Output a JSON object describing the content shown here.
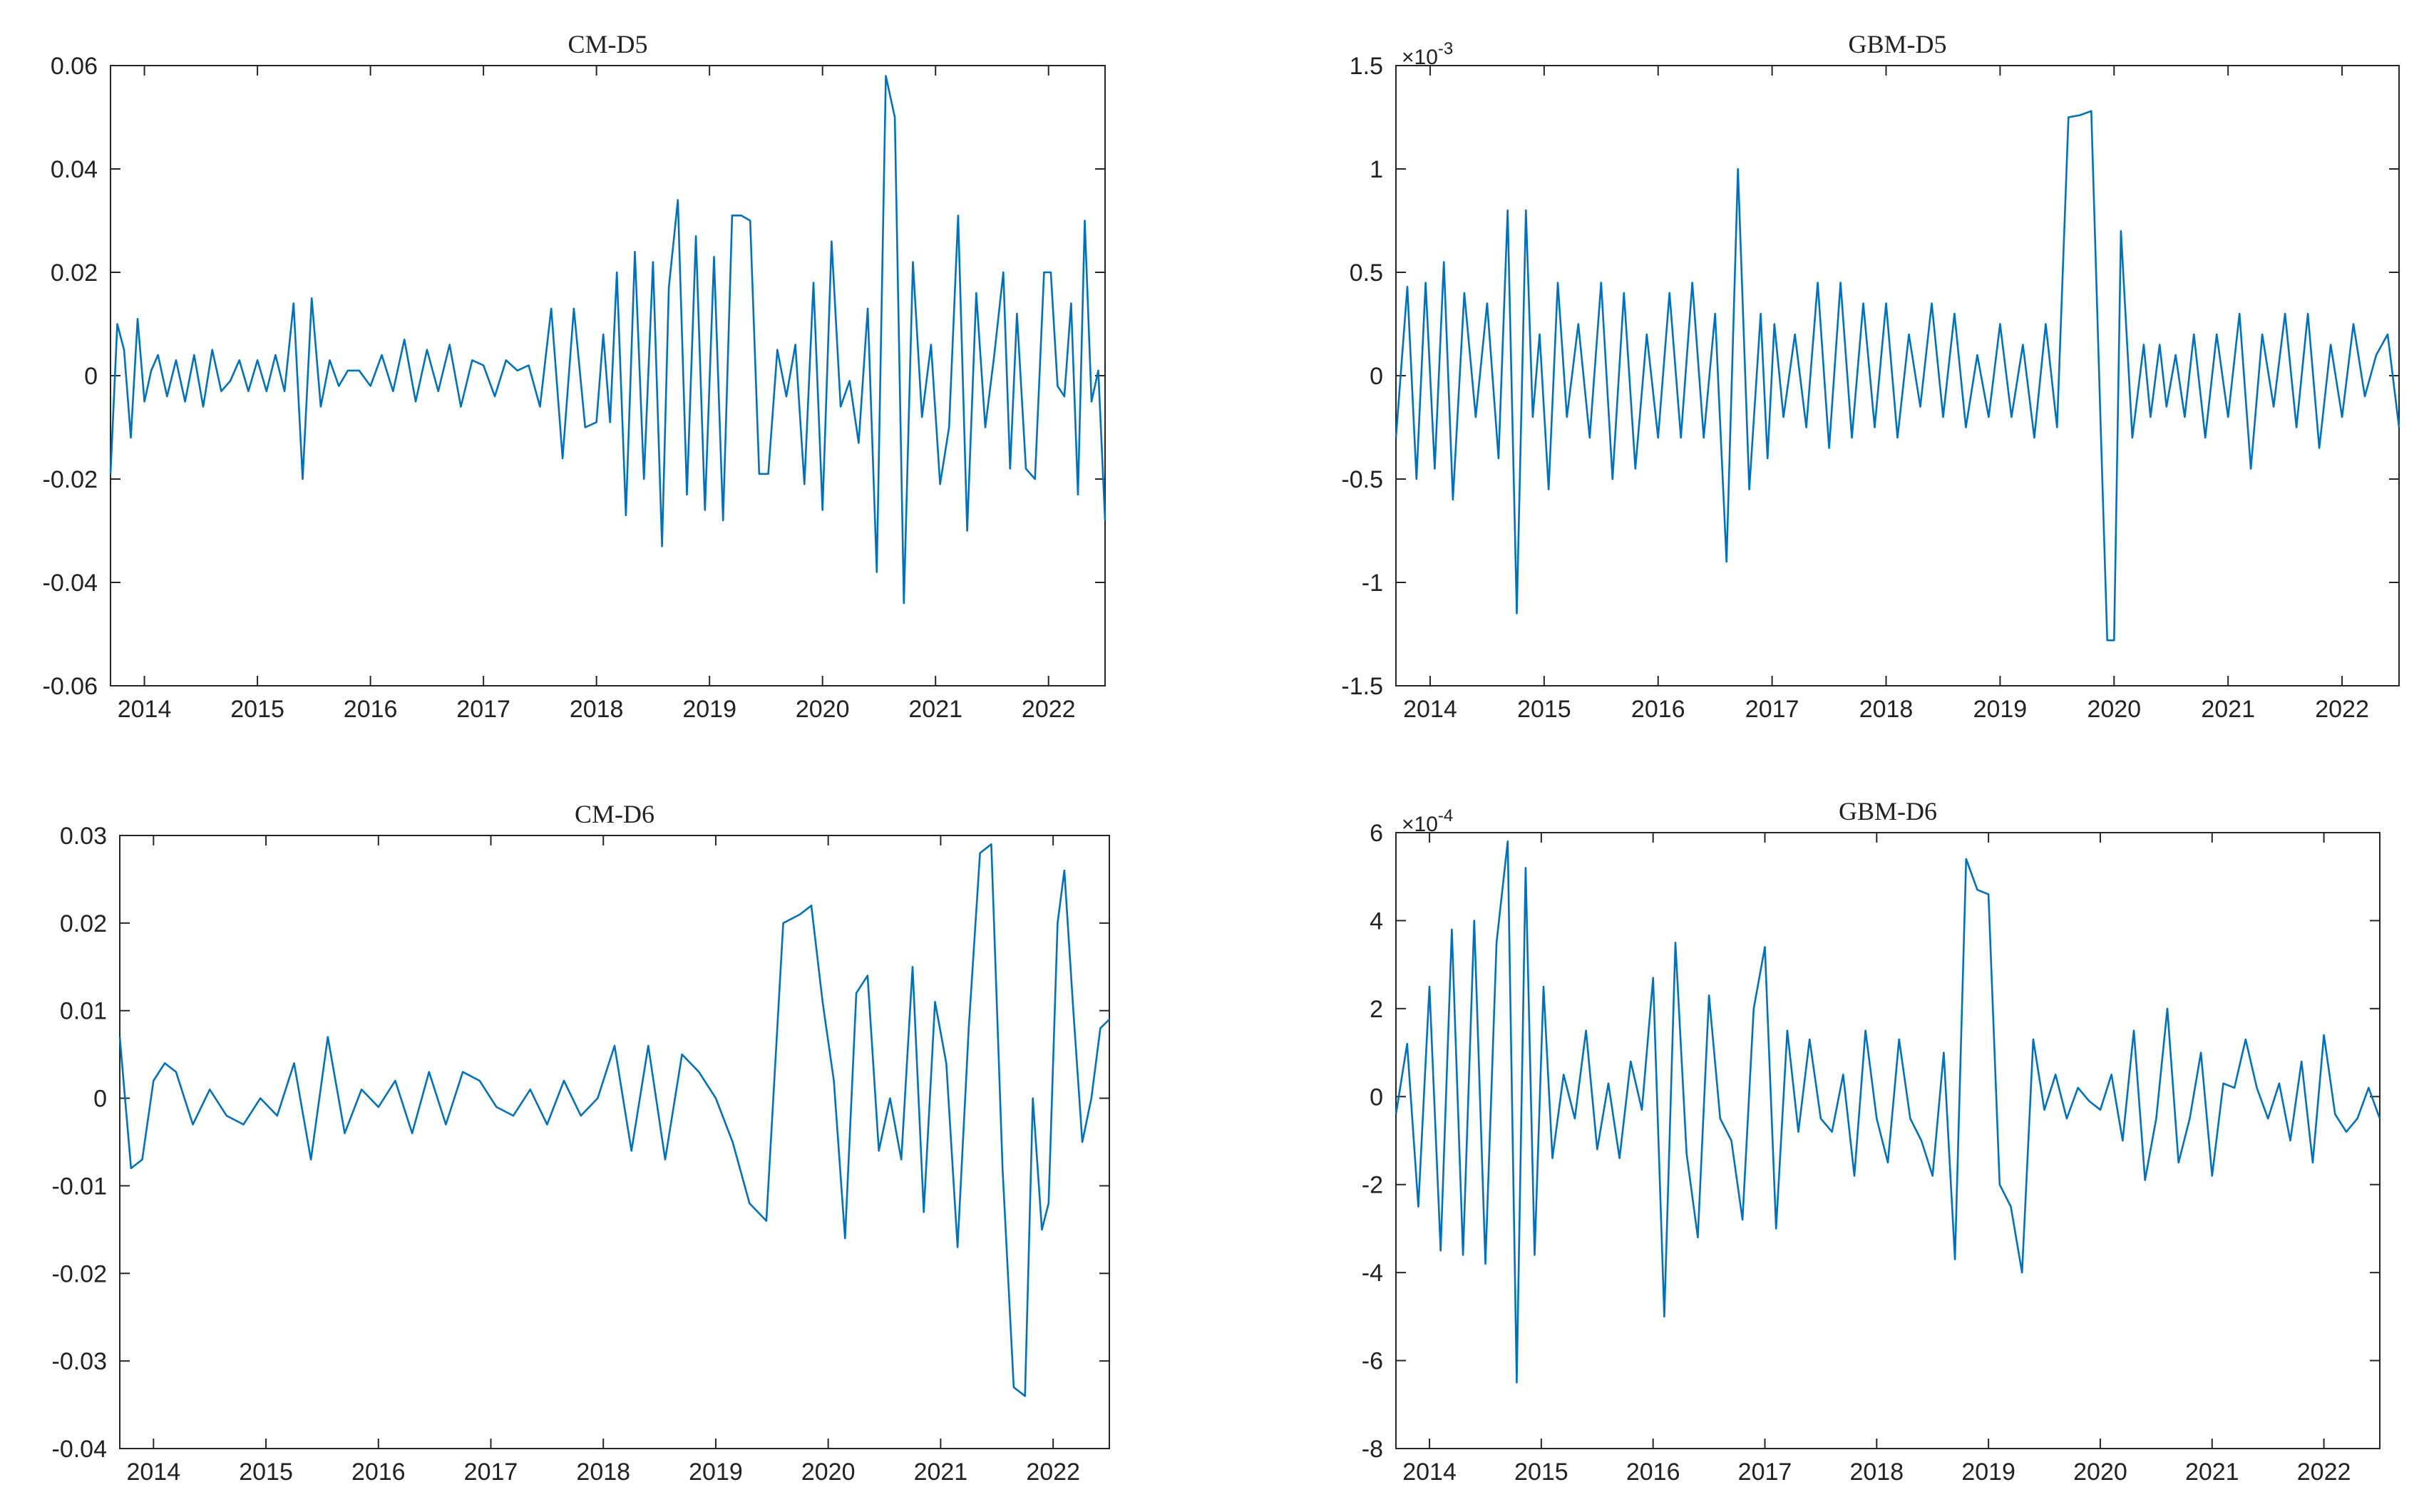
{
  "chart_data": [
    {
      "id": "cm-d5",
      "type": "line",
      "title": "CM-D5",
      "xlabel": "",
      "ylabel": "",
      "x_ticks": [
        "2014",
        "2015",
        "2016",
        "2017",
        "2018",
        "2019",
        "2020",
        "2021",
        "2022"
      ],
      "xlim": [
        2013.7,
        2022.5
      ],
      "ylim": [
        -0.06,
        0.06
      ],
      "y_ticks": [
        -0.06,
        -0.04,
        -0.02,
        0,
        0.02,
        0.04,
        0.06
      ],
      "y_tick_labels": [
        "-0.06",
        "-0.04",
        "-0.02",
        "0",
        "0.02",
        "0.04",
        "0.06"
      ],
      "exponent_label": "",
      "grid": false,
      "color": "#0072BD",
      "series": [
        {
          "x": [
            2013.7,
            2013.76,
            2013.82,
            2013.88,
            2013.94,
            2014.0,
            2014.06,
            2014.12,
            2014.2,
            2014.28,
            2014.36,
            2014.44,
            2014.52,
            2014.6,
            2014.68,
            2014.76,
            2014.84,
            2014.92,
            2015.0,
            2015.08,
            2015.16,
            2015.24,
            2015.32,
            2015.4,
            2015.48,
            2015.56,
            2015.64,
            2015.72,
            2015.8,
            2015.9,
            2016.0,
            2016.1,
            2016.2,
            2016.3,
            2016.4,
            2016.5,
            2016.6,
            2016.7,
            2016.8,
            2016.9,
            2017.0,
            2017.1,
            2017.2,
            2017.3,
            2017.4,
            2017.5,
            2017.6,
            2017.7,
            2017.8,
            2017.9,
            2018.0,
            2018.06,
            2018.12,
            2018.18,
            2018.26,
            2018.34,
            2018.42,
            2018.5,
            2018.58,
            2018.64,
            2018.72,
            2018.8,
            2018.88,
            2018.96,
            2019.04,
            2019.12,
            2019.2,
            2019.28,
            2019.36,
            2019.44,
            2019.52,
            2019.6,
            2019.68,
            2019.76,
            2019.84,
            2019.92,
            2020.0,
            2020.08,
            2020.16,
            2020.24,
            2020.32,
            2020.4,
            2020.48,
            2020.56,
            2020.64,
            2020.72,
            2020.8,
            2020.88,
            2020.96,
            2021.04,
            2021.12,
            2021.2,
            2021.28,
            2021.36,
            2021.44,
            2021.52,
            2021.6,
            2021.66,
            2021.72,
            2021.8,
            2021.88,
            2021.96,
            2022.02,
            2022.08,
            2022.14,
            2022.2,
            2022.26,
            2022.32,
            2022.38,
            2022.44,
            2022.5
          ],
          "y": [
            -0.019,
            0.01,
            0.005,
            -0.012,
            0.011,
            -0.005,
            0.001,
            0.004,
            -0.004,
            0.003,
            -0.005,
            0.004,
            -0.006,
            0.005,
            -0.003,
            -0.001,
            0.003,
            -0.003,
            0.003,
            -0.003,
            0.004,
            -0.003,
            0.014,
            -0.02,
            0.015,
            -0.006,
            0.003,
            -0.002,
            0.001,
            0.001,
            -0.002,
            0.004,
            -0.003,
            0.007,
            -0.005,
            0.005,
            -0.003,
            0.006,
            -0.006,
            0.003,
            0.002,
            -0.004,
            0.003,
            0.001,
            0.002,
            -0.006,
            0.013,
            -0.016,
            0.013,
            -0.01,
            -0.009,
            0.008,
            -0.009,
            0.02,
            -0.027,
            0.024,
            -0.02,
            0.022,
            -0.033,
            0.017,
            0.034,
            -0.023,
            0.027,
            -0.026,
            0.023,
            -0.028,
            0.031,
            0.031,
            0.03,
            -0.019,
            -0.019,
            0.005,
            -0.004,
            0.006,
            -0.021,
            0.018,
            -0.026,
            0.026,
            -0.006,
            -0.001,
            -0.013,
            0.013,
            -0.038,
            0.058,
            0.05,
            -0.044,
            0.022,
            -0.008,
            0.006,
            -0.021,
            -0.01,
            0.031,
            -0.03,
            0.016,
            -0.01,
            0.004,
            0.02,
            -0.018,
            0.012,
            -0.018,
            -0.02,
            0.02,
            0.02,
            -0.002,
            -0.004,
            0.014,
            -0.023,
            0.03,
            -0.005,
            0.001,
            -0.028
          ]
        }
      ]
    },
    {
      "id": "gbm-d5",
      "type": "line",
      "title": "GBM-D5",
      "xlabel": "",
      "ylabel": "",
      "x_ticks": [
        "2014",
        "2015",
        "2016",
        "2017",
        "2018",
        "2019",
        "2020",
        "2021",
        "2022"
      ],
      "xlim": [
        2013.7,
        2022.5
      ],
      "ylim": [
        -1.5,
        1.5
      ],
      "y_ticks": [
        -1.5,
        -1,
        -0.5,
        0,
        0.5,
        1,
        1.5
      ],
      "y_tick_labels": [
        "-1.5",
        "-1",
        "-0.5",
        "0",
        "0.5",
        "1",
        "1.5"
      ],
      "exponent_label": "×10",
      "exponent_power": "-3",
      "grid": false,
      "color": "#0072BD",
      "series": [
        {
          "x": [
            2013.7,
            2013.8,
            2013.88,
            2013.96,
            2014.04,
            2014.12,
            2014.2,
            2014.3,
            2014.4,
            2014.5,
            2014.6,
            2014.68,
            2014.76,
            2014.84,
            2014.9,
            2014.96,
            2015.04,
            2015.12,
            2015.2,
            2015.3,
            2015.4,
            2015.5,
            2015.6,
            2015.7,
            2015.8,
            2015.9,
            2016.0,
            2016.1,
            2016.2,
            2016.3,
            2016.4,
            2016.5,
            2016.6,
            2016.7,
            2016.8,
            2016.9,
            2016.96,
            2017.02,
            2017.1,
            2017.2,
            2017.3,
            2017.4,
            2017.5,
            2017.6,
            2017.7,
            2017.8,
            2017.9,
            2018.0,
            2018.1,
            2018.2,
            2018.3,
            2018.4,
            2018.5,
            2018.6,
            2018.7,
            2018.8,
            2018.9,
            2019.0,
            2019.1,
            2019.2,
            2019.3,
            2019.4,
            2019.5,
            2019.6,
            2019.7,
            2019.8,
            2019.88,
            2019.94,
            2020.0,
            2020.06,
            2020.16,
            2020.26,
            2020.32,
            2020.4,
            2020.46,
            2020.54,
            2020.62,
            2020.7,
            2020.8,
            2020.9,
            2021.0,
            2021.1,
            2021.2,
            2021.3,
            2021.4,
            2021.5,
            2021.6,
            2021.7,
            2021.8,
            2021.9,
            2022.0,
            2022.1,
            2022.2,
            2022.3,
            2022.4,
            2022.5
          ],
          "y": [
            -0.3,
            0.43,
            -0.5,
            0.45,
            -0.45,
            0.55,
            -0.6,
            0.4,
            -0.2,
            0.35,
            -0.4,
            0.8,
            -1.15,
            0.8,
            -0.2,
            0.2,
            -0.55,
            0.45,
            -0.2,
            0.25,
            -0.3,
            0.45,
            -0.5,
            0.4,
            -0.45,
            0.2,
            -0.3,
            0.4,
            -0.3,
            0.45,
            -0.3,
            0.3,
            -0.9,
            1.0,
            -0.55,
            0.3,
            -0.4,
            0.25,
            -0.2,
            0.2,
            -0.25,
            0.45,
            -0.35,
            0.45,
            -0.3,
            0.35,
            -0.25,
            0.35,
            -0.3,
            0.2,
            -0.15,
            0.35,
            -0.2,
            0.3,
            -0.25,
            0.1,
            -0.2,
            0.25,
            -0.2,
            0.15,
            -0.3,
            0.25,
            -0.25,
            1.25,
            1.26,
            1.28,
            -0.2,
            -1.28,
            -1.28,
            0.7,
            -0.3,
            0.15,
            -0.2,
            0.15,
            -0.15,
            0.1,
            -0.2,
            0.2,
            -0.3,
            0.2,
            -0.2,
            0.3,
            -0.45,
            0.2,
            -0.15,
            0.3,
            -0.25,
            0.3,
            -0.35,
            0.15,
            -0.2,
            0.25,
            -0.1,
            0.1,
            0.2,
            -0.25
          ],
          "x_scale_note": ""
        }
      ]
    },
    {
      "id": "cm-d6",
      "type": "line",
      "title": "CM-D6",
      "xlabel": "",
      "ylabel": "",
      "x_ticks": [
        "2014",
        "2015",
        "2016",
        "2017",
        "2018",
        "2019",
        "2020",
        "2021",
        "2022"
      ],
      "xlim": [
        2013.7,
        2022.5
      ],
      "ylim": [
        -0.04,
        0.03
      ],
      "y_ticks": [
        -0.04,
        -0.03,
        -0.02,
        -0.01,
        0,
        0.01,
        0.02,
        0.03
      ],
      "y_tick_labels": [
        "-0.04",
        "-0.03",
        "-0.02",
        "-0.01",
        "0",
        "0.01",
        "0.02",
        "0.03"
      ],
      "exponent_label": "",
      "grid": false,
      "color": "#0072BD",
      "series": [
        {
          "x": [
            2013.7,
            2013.8,
            2013.9,
            2014.0,
            2014.1,
            2014.2,
            2014.35,
            2014.5,
            2014.65,
            2014.8,
            2014.95,
            2015.1,
            2015.25,
            2015.4,
            2015.55,
            2015.7,
            2015.85,
            2016.0,
            2016.15,
            2016.3,
            2016.45,
            2016.6,
            2016.75,
            2016.9,
            2017.05,
            2017.2,
            2017.35,
            2017.5,
            2017.65,
            2017.8,
            2017.95,
            2018.1,
            2018.25,
            2018.4,
            2018.55,
            2018.7,
            2018.85,
            2019.0,
            2019.15,
            2019.3,
            2019.45,
            2019.6,
            2019.75,
            2019.85,
            2019.95,
            2020.05,
            2020.15,
            2020.25,
            2020.35,
            2020.45,
            2020.55,
            2020.65,
            2020.75,
            2020.85,
            2020.95,
            2021.05,
            2021.15,
            2021.25,
            2021.35,
            2021.45,
            2021.55,
            2021.65,
            2021.75,
            2021.82,
            2021.9,
            2021.96,
            2022.04,
            2022.1,
            2022.18,
            2022.26,
            2022.34,
            2022.42,
            2022.5
          ],
          "y": [
            0.007,
            -0.008,
            -0.007,
            0.002,
            0.004,
            0.003,
            -0.003,
            0.001,
            -0.002,
            -0.003,
            0.0,
            -0.002,
            0.004,
            -0.007,
            0.007,
            -0.004,
            0.001,
            -0.001,
            0.002,
            -0.004,
            0.003,
            -0.003,
            0.003,
            0.002,
            -0.001,
            -0.002,
            0.001,
            -0.003,
            0.002,
            -0.002,
            0.0,
            0.006,
            -0.006,
            0.006,
            -0.007,
            0.005,
            0.003,
            0.0,
            -0.005,
            -0.012,
            -0.014,
            0.02,
            0.021,
            0.022,
            0.011,
            0.002,
            -0.016,
            0.012,
            0.014,
            -0.006,
            0.0,
            -0.007,
            0.015,
            -0.013,
            0.011,
            0.004,
            -0.017,
            0.008,
            0.028,
            0.029,
            -0.008,
            -0.033,
            -0.034,
            0.0,
            -0.015,
            -0.012,
            0.02,
            0.026,
            0.01,
            -0.005,
            0.0,
            0.008,
            0.009
          ]
        }
      ]
    },
    {
      "id": "gbm-d6",
      "type": "line",
      "title": "GBM-D6",
      "xlabel": "",
      "ylabel": "",
      "x_ticks": [
        "2014",
        "2015",
        "2016",
        "2017",
        "2018",
        "2019",
        "2020",
        "2021",
        "2022"
      ],
      "xlim": [
        2013.7,
        2022.5
      ],
      "ylim": [
        -8,
        6
      ],
      "y_ticks": [
        -8,
        -6,
        -4,
        -2,
        0,
        2,
        4,
        6
      ],
      "y_tick_labels": [
        "-8",
        "-6",
        "-4",
        "-2",
        "0",
        "2",
        "4",
        "6"
      ],
      "exponent_label": "×10",
      "exponent_power": "-4",
      "grid": false,
      "color": "#0072BD",
      "series": [
        {
          "x": [
            2013.7,
            2013.8,
            2013.9,
            2014.0,
            2014.1,
            2014.2,
            2014.3,
            2014.4,
            2014.5,
            2014.6,
            2014.7,
            2014.78,
            2014.86,
            2014.94,
            2015.02,
            2015.1,
            2015.2,
            2015.3,
            2015.4,
            2015.5,
            2015.6,
            2015.7,
            2015.8,
            2015.9,
            2016.0,
            2016.1,
            2016.2,
            2016.3,
            2016.4,
            2016.5,
            2016.6,
            2016.7,
            2016.8,
            2016.9,
            2017.0,
            2017.1,
            2017.2,
            2017.3,
            2017.4,
            2017.5,
            2017.6,
            2017.7,
            2017.8,
            2017.9,
            2018.0,
            2018.1,
            2018.2,
            2018.3,
            2018.4,
            2018.5,
            2018.6,
            2018.7,
            2018.8,
            2018.9,
            2019.0,
            2019.1,
            2019.2,
            2019.3,
            2019.4,
            2019.5,
            2019.6,
            2019.7,
            2019.8,
            2019.9,
            2020.0,
            2020.1,
            2020.2,
            2020.3,
            2020.4,
            2020.5,
            2020.6,
            2020.7,
            2020.8,
            2020.9,
            2021.0,
            2021.1,
            2021.2,
            2021.3,
            2021.4,
            2021.5,
            2021.6,
            2021.7,
            2021.8,
            2021.9,
            2022.0,
            2022.1,
            2022.2,
            2022.3,
            2022.4,
            2022.5
          ],
          "y": [
            -0.4,
            1.2,
            -2.5,
            2.5,
            -3.5,
            3.8,
            -3.6,
            4.0,
            -3.8,
            3.5,
            5.8,
            -6.5,
            5.2,
            -3.6,
            2.5,
            -1.4,
            0.5,
            -0.5,
            1.5,
            -1.2,
            0.3,
            -1.4,
            0.8,
            -0.3,
            2.7,
            -5.0,
            3.5,
            -1.3,
            -3.2,
            2.3,
            -0.5,
            -1.0,
            -2.8,
            2.0,
            3.4,
            -3.0,
            1.5,
            -0.8,
            1.3,
            -0.5,
            -0.8,
            0.5,
            -1.8,
            1.5,
            -0.5,
            -1.5,
            1.3,
            -0.5,
            -1.0,
            -1.8,
            1.0,
            -3.7,
            5.4,
            4.7,
            4.6,
            -2.0,
            -2.5,
            -4.0,
            1.3,
            -0.3,
            0.5,
            -0.5,
            0.2,
            -0.1,
            -0.3,
            0.5,
            -1.0,
            1.5,
            -1.9,
            -0.5,
            2.0,
            -1.5,
            -0.5,
            1.0,
            -1.8,
            0.3,
            0.2,
            1.3,
            0.2,
            -0.5,
            0.3,
            -1.0,
            0.8,
            -1.5,
            1.4,
            -0.4,
            -0.8,
            -0.5,
            0.2,
            -0.5
          ]
        }
      ]
    }
  ]
}
